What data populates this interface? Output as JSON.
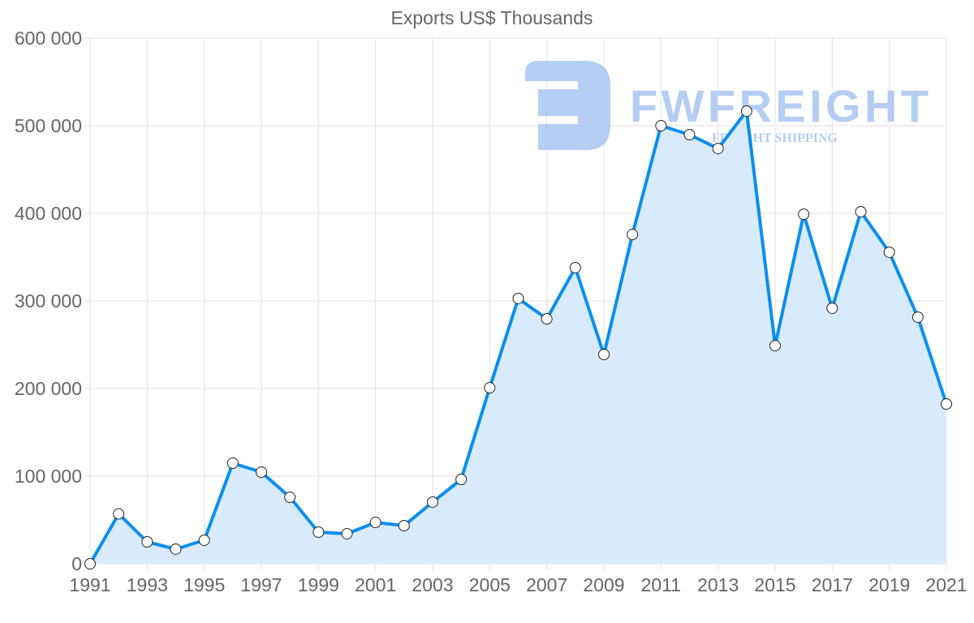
{
  "chart_data": {
    "type": "area",
    "title": "Exports US$ Thousands",
    "xlabel": "",
    "ylabel": "",
    "x": [
      1991,
      1992,
      1993,
      1994,
      1995,
      1996,
      1997,
      1998,
      1999,
      2000,
      2001,
      2002,
      2003,
      2004,
      2005,
      2006,
      2007,
      2008,
      2009,
      2010,
      2011,
      2012,
      2013,
      2014,
      2015,
      2016,
      2017,
      2018,
      2019,
      2020,
      2021
    ],
    "series": [
      {
        "name": "Exports US$ Thousands",
        "values": [
          0,
          57000,
          25000,
          16700,
          26900,
          114800,
          104600,
          75900,
          36100,
          34300,
          47200,
          43500,
          70400,
          96300,
          200900,
          302800,
          279600,
          338000,
          238900,
          375900,
          500000,
          489800,
          474000,
          516700,
          249000,
          399000,
          291700,
          401900,
          355600,
          281500,
          182400
        ]
      }
    ],
    "xticks": [
      "1991",
      "1993",
      "1995",
      "1997",
      "1999",
      "2001",
      "2003",
      "2005",
      "2007",
      "2009",
      "2011",
      "2013",
      "2015",
      "2017",
      "2019",
      "2021"
    ],
    "yticks": [
      {
        "v": 0,
        "label": "0"
      },
      {
        "v": 100000,
        "label": "100 000"
      },
      {
        "v": 200000,
        "label": "200 000"
      },
      {
        "v": 300000,
        "label": "300 000"
      },
      {
        "v": 400000,
        "label": "400 000"
      },
      {
        "v": 500000,
        "label": "500 000"
      },
      {
        "v": 600000,
        "label": "600 000"
      }
    ],
    "ylim": [
      0,
      600000
    ],
    "xlim": [
      1991,
      2021
    ],
    "grid": true,
    "legend": "none",
    "colors": {
      "line": "#0b8ef0",
      "fill": "#d8ebfc",
      "grid": "#e2e2e2",
      "text": "#666666",
      "marker_fill": "#ffffff",
      "marker_stroke": "#222222"
    }
  },
  "watermark": {
    "brand": "FWFREIGHT",
    "tagline": "FREIGHT SHIPPING",
    "color": "#a9c5f1"
  }
}
